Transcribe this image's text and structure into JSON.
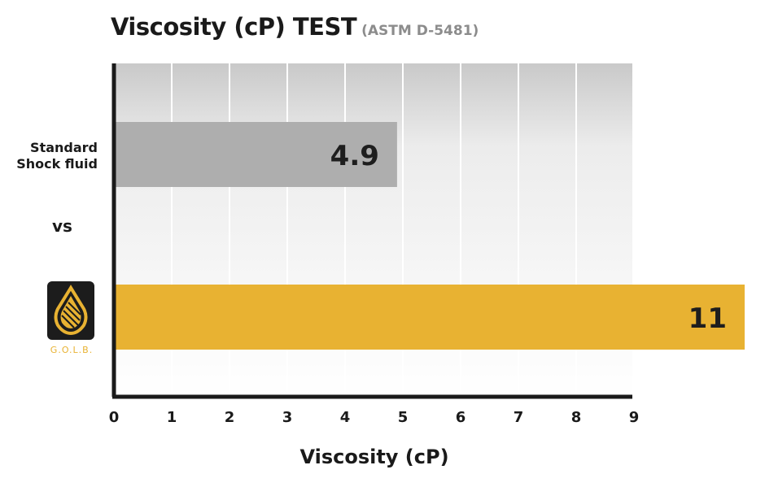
{
  "chart_data": {
    "type": "bar",
    "orientation": "horizontal",
    "title": "Viscosity (cP) TEST",
    "subtitle": "(ASTM D-5481)",
    "xlabel": "Viscosity (cP)",
    "xlim": [
      0,
      9
    ],
    "xticks": [
      "0",
      "1",
      "2",
      "3",
      "4",
      "5",
      "6",
      "7",
      "8",
      "9"
    ],
    "grid": true,
    "categories": [
      "Standard Shock fluid",
      "G.O.L.B."
    ],
    "category_lines": [
      [
        "Standard",
        "Shock fluid"
      ],
      [
        "G.O.L.B."
      ]
    ],
    "values": [
      4.9,
      11
    ],
    "value_labels": [
      "4.9",
      "11"
    ],
    "colors": [
      "#aeaeae",
      "#e8b232"
    ],
    "separator": "vs"
  },
  "logo": {
    "text": "G.O.L.B.",
    "icon": "golb-logo-icon",
    "color": "#e8b232"
  }
}
